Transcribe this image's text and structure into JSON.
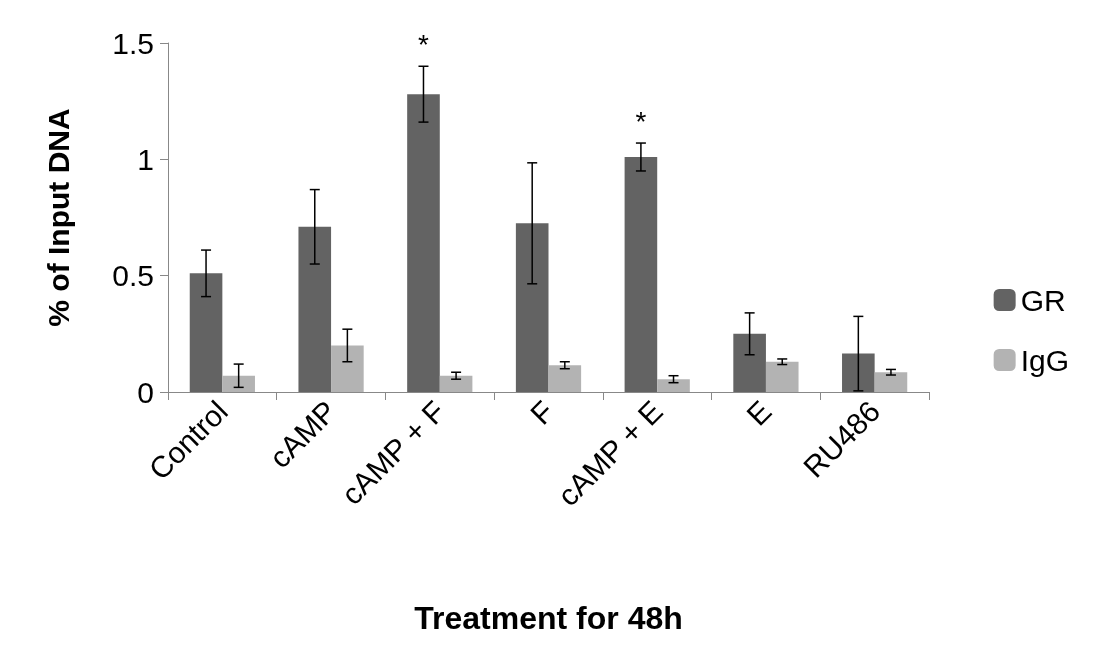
{
  "chart_data": {
    "type": "bar",
    "xlabel": "Treatment for 48h",
    "ylabel": "% of Input DNA",
    "categories": [
      "Control",
      "cAMP",
      "cAMP + F",
      "F",
      "cAMP + E",
      "E",
      "RU486"
    ],
    "series": [
      {
        "name": "GR",
        "color": "#636363",
        "values": [
          0.51,
          0.71,
          1.28,
          0.725,
          1.01,
          0.25,
          0.165
        ],
        "errors": [
          0.1,
          0.16,
          0.12,
          0.26,
          0.06,
          0.09,
          0.16
        ]
      },
      {
        "name": "IgG",
        "color": "#b3b3b3",
        "values": [
          0.07,
          0.2,
          0.07,
          0.115,
          0.055,
          0.13,
          0.085
        ],
        "errors": [
          0.05,
          0.07,
          0.015,
          0.015,
          0.015,
          0.012,
          0.012
        ]
      }
    ],
    "ylim": [
      0,
      1.5
    ],
    "yticks": [
      0,
      0.5,
      1,
      1.5
    ],
    "grid": false,
    "legend": "right",
    "annotations": [
      "*",
      "*"
    ]
  }
}
